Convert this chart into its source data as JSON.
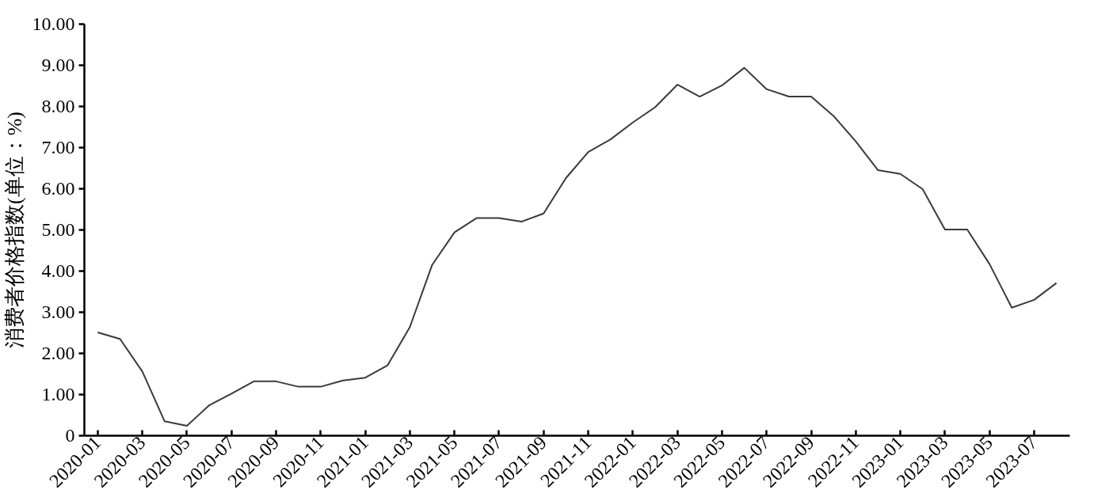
{
  "chart_data": {
    "type": "line",
    "ylabel": "消费者价格指数(单位：%)",
    "categories": [
      "2020-01",
      null,
      "2020-03",
      null,
      "2020-05",
      null,
      "2020-07",
      null,
      "2020-09",
      null,
      "2020-11",
      null,
      "2021-01",
      null,
      "2021-03",
      null,
      "2021-05",
      null,
      "2021-07",
      null,
      "2021-09",
      null,
      "2021-11",
      null,
      "2022-01",
      null,
      "2022-03",
      null,
      "2022-05",
      null,
      "2022-07",
      null,
      "2022-09",
      null,
      "2022-11",
      null,
      "2023-01",
      null,
      "2023-03",
      null,
      "2023-05",
      null,
      "2023-07",
      null
    ],
    "values": [
      2.51,
      2.35,
      1.56,
      0.35,
      0.24,
      0.74,
      1.02,
      1.32,
      1.32,
      1.19,
      1.19,
      1.34,
      1.41,
      1.71,
      2.64,
      4.15,
      4.94,
      5.29,
      5.29,
      5.2,
      5.4,
      6.26,
      6.89,
      7.2,
      7.61,
      7.98,
      8.53,
      8.24,
      8.51,
      8.94,
      8.42,
      8.24,
      8.24,
      7.77,
      7.15,
      6.45,
      6.36,
      5.99,
      5.01,
      5.01,
      4.17,
      3.11,
      3.3,
      3.71
    ],
    "color": "#3a3a3a",
    "ylim": [
      0,
      10
    ],
    "yticks": [
      0,
      {
        "value": 1,
        "label": "1.00"
      },
      {
        "value": 2,
        "label": "2.00"
      },
      {
        "value": 3,
        "label": "3.00"
      },
      {
        "value": 4,
        "label": "4.00"
      },
      {
        "value": 5,
        "label": "5.00"
      },
      {
        "value": 6,
        "label": "6.00"
      },
      {
        "value": 7,
        "label": "7.00"
      },
      {
        "value": 8,
        "label": "8.00"
      },
      {
        "value": 9,
        "label": "9.00"
      },
      {
        "value": 10,
        "label": "10.00"
      }
    ],
    "grid": false
  }
}
